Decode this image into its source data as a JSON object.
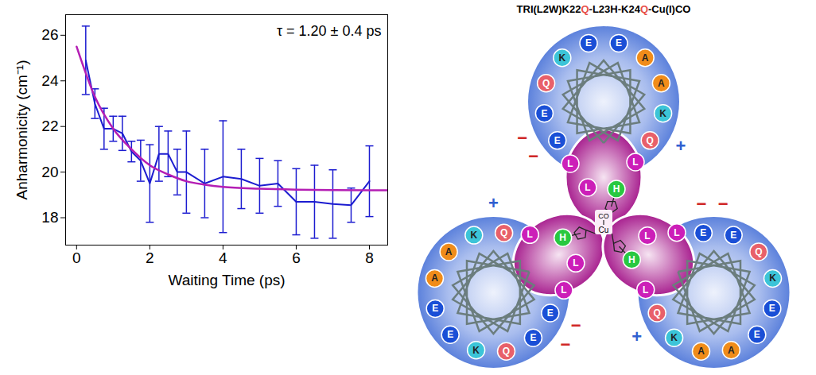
{
  "chart_data": {
    "type": "line",
    "x_label": "Waiting Time (ps)",
    "y_label": "Anharmonicity (cm⁻¹)",
    "annotations": [
      "τ = 1.20 ± 0.4 ps"
    ],
    "x": [
      0.25,
      0.5,
      0.75,
      1,
      1.25,
      1.5,
      1.75,
      2,
      2.25,
      2.5,
      2.75,
      3,
      3.5,
      4,
      4.5,
      5,
      5.5,
      6,
      6.5,
      7,
      7.5,
      8
    ],
    "series": [
      {
        "color": "#1c1cd0",
        "marker": "none",
        "values": [
          24.9,
          23.0,
          21.9,
          21.9,
          21.7,
          20.9,
          20.5,
          19.5,
          20.8,
          20.8,
          20.0,
          20.0,
          19.5,
          19.8,
          19.7,
          19.4,
          19.5,
          18.7,
          18.7,
          18.6,
          18.55,
          19.6
        ],
        "error": [
          1.5,
          0.65,
          0.9,
          0.55,
          0.75,
          0.45,
          0.9,
          1.7,
          1.2,
          1.0,
          1.0,
          1.8,
          1.5,
          2.45,
          1.3,
          1.2,
          1.0,
          1.45,
          1.6,
          1.5,
          0.75,
          1.55
        ]
      },
      {
        "color": "#b41eb4",
        "line_style": "solid",
        "x": [
          0,
          0.5,
          1,
          1.5,
          2,
          2.5,
          3,
          3.5,
          4,
          5,
          6,
          7,
          8,
          8.5
        ],
        "values": [
          25.5,
          23.3,
          21.9,
          21.0,
          20.3,
          19.9,
          19.6,
          19.45,
          19.35,
          19.27,
          19.23,
          19.21,
          19.2,
          19.2
        ]
      }
    ],
    "xlim": [
      -0.3,
      8.5
    ],
    "xticks": [
      0,
      2,
      4,
      6,
      8
    ],
    "ylim": [
      16.8,
      26.9
    ],
    "yticks": [
      18,
      20,
      22,
      24,
      26
    ],
    "grid": false
  },
  "diagram": {
    "title_parts": [
      {
        "text": "TRI(L2W)K22",
        "color": "#000000"
      },
      {
        "text": "Q",
        "color": "#e8504a"
      },
      {
        "text": "-L23H-K24",
        "color": "#000000"
      },
      {
        "text": "Q",
        "color": "#e8504a"
      },
      {
        "text": "-Cu(I)CO",
        "color": "#000000"
      }
    ],
    "center": {
      "metal": "Cu",
      "ligand": "CO"
    },
    "residue_colors": {
      "E": "#1a4fd6",
      "K": "#3cc4d8",
      "Q": "#e8606a",
      "A": "#f08c1a",
      "L": "#cc1fb8",
      "H": "#28c840"
    },
    "charge_colors": {
      "+": "#2f5fd0",
      "−": "#d02828"
    },
    "helices": [
      {
        "outer": [
          "E",
          "E",
          "Q",
          "K",
          "E",
          "E",
          "A",
          "A",
          "K",
          "Q"
        ],
        "inner": [
          "L",
          "H",
          "L",
          "L"
        ],
        "charges": [
          "−",
          "−",
          "+"
        ]
      },
      {
        "outer": [
          "E",
          "E",
          "Q",
          "K",
          "E",
          "E",
          "A",
          "A",
          "K",
          "Q"
        ],
        "inner": [
          "L",
          "H",
          "L",
          "L"
        ],
        "charges": [
          "−",
          "−",
          "+"
        ]
      },
      {
        "outer": [
          "E",
          "E",
          "Q",
          "K",
          "E",
          "E",
          "A",
          "A",
          "K",
          "Q"
        ],
        "inner": [
          "L",
          "H",
          "L",
          "L"
        ],
        "charges": [
          "−",
          "−",
          "+"
        ]
      }
    ]
  }
}
